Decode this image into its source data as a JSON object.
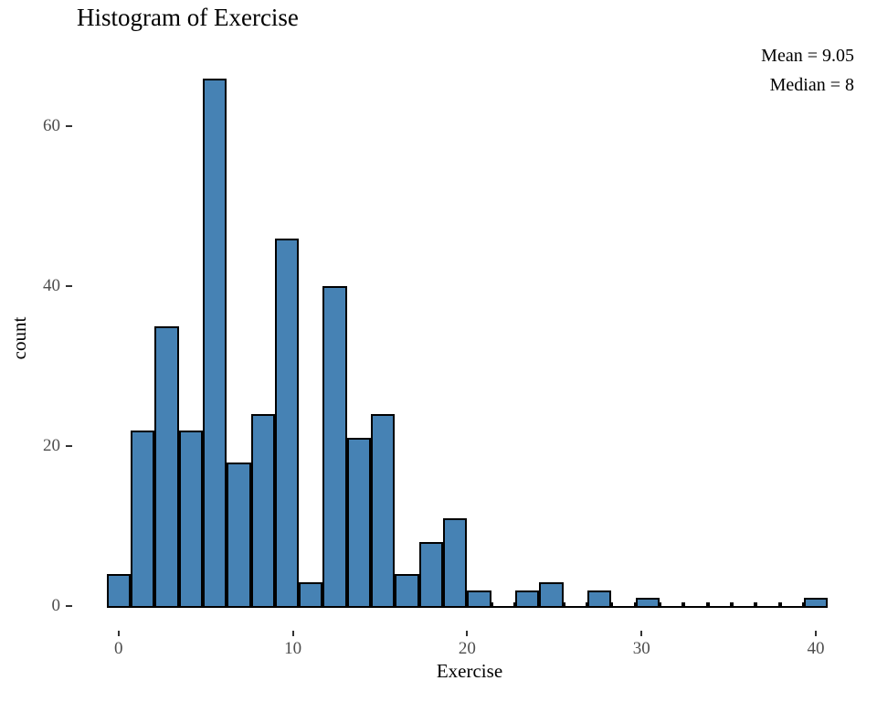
{
  "chart_data": {
    "type": "bar",
    "variant": "histogram",
    "title": "Histogram of Exercise",
    "xlabel": "Exercise",
    "ylabel": "count",
    "annotations": {
      "mean": "Mean = 9.05",
      "median": "Median = 8"
    },
    "x_ticks": [
      0,
      10,
      20,
      30,
      40
    ],
    "y_ticks": [
      0,
      20,
      40,
      60
    ],
    "xlim": [
      -2.5,
      42.5
    ],
    "ylim": [
      0,
      69
    ],
    "bins": 30,
    "bin_width": 1.3793,
    "bin_centers": [
      0,
      1.38,
      2.76,
      4.14,
      5.52,
      6.9,
      8.28,
      9.66,
      11.03,
      12.41,
      13.79,
      15.17,
      16.55,
      17.93,
      19.31,
      20.69,
      22.07,
      23.45,
      24.83,
      26.21,
      27.59,
      28.97,
      30.34,
      31.72,
      33.1,
      34.48,
      35.86,
      37.24,
      38.62,
      40
    ],
    "counts": [
      4,
      22,
      35,
      22,
      66,
      18,
      24,
      46,
      3,
      40,
      21,
      24,
      4,
      8,
      11,
      2,
      0,
      2,
      3,
      0,
      2,
      0,
      1,
      0,
      0,
      0,
      0,
      0,
      0,
      1
    ],
    "bar_color": "#4682B4",
    "bar_border": "#000000",
    "grid": "none",
    "legend": "none"
  }
}
